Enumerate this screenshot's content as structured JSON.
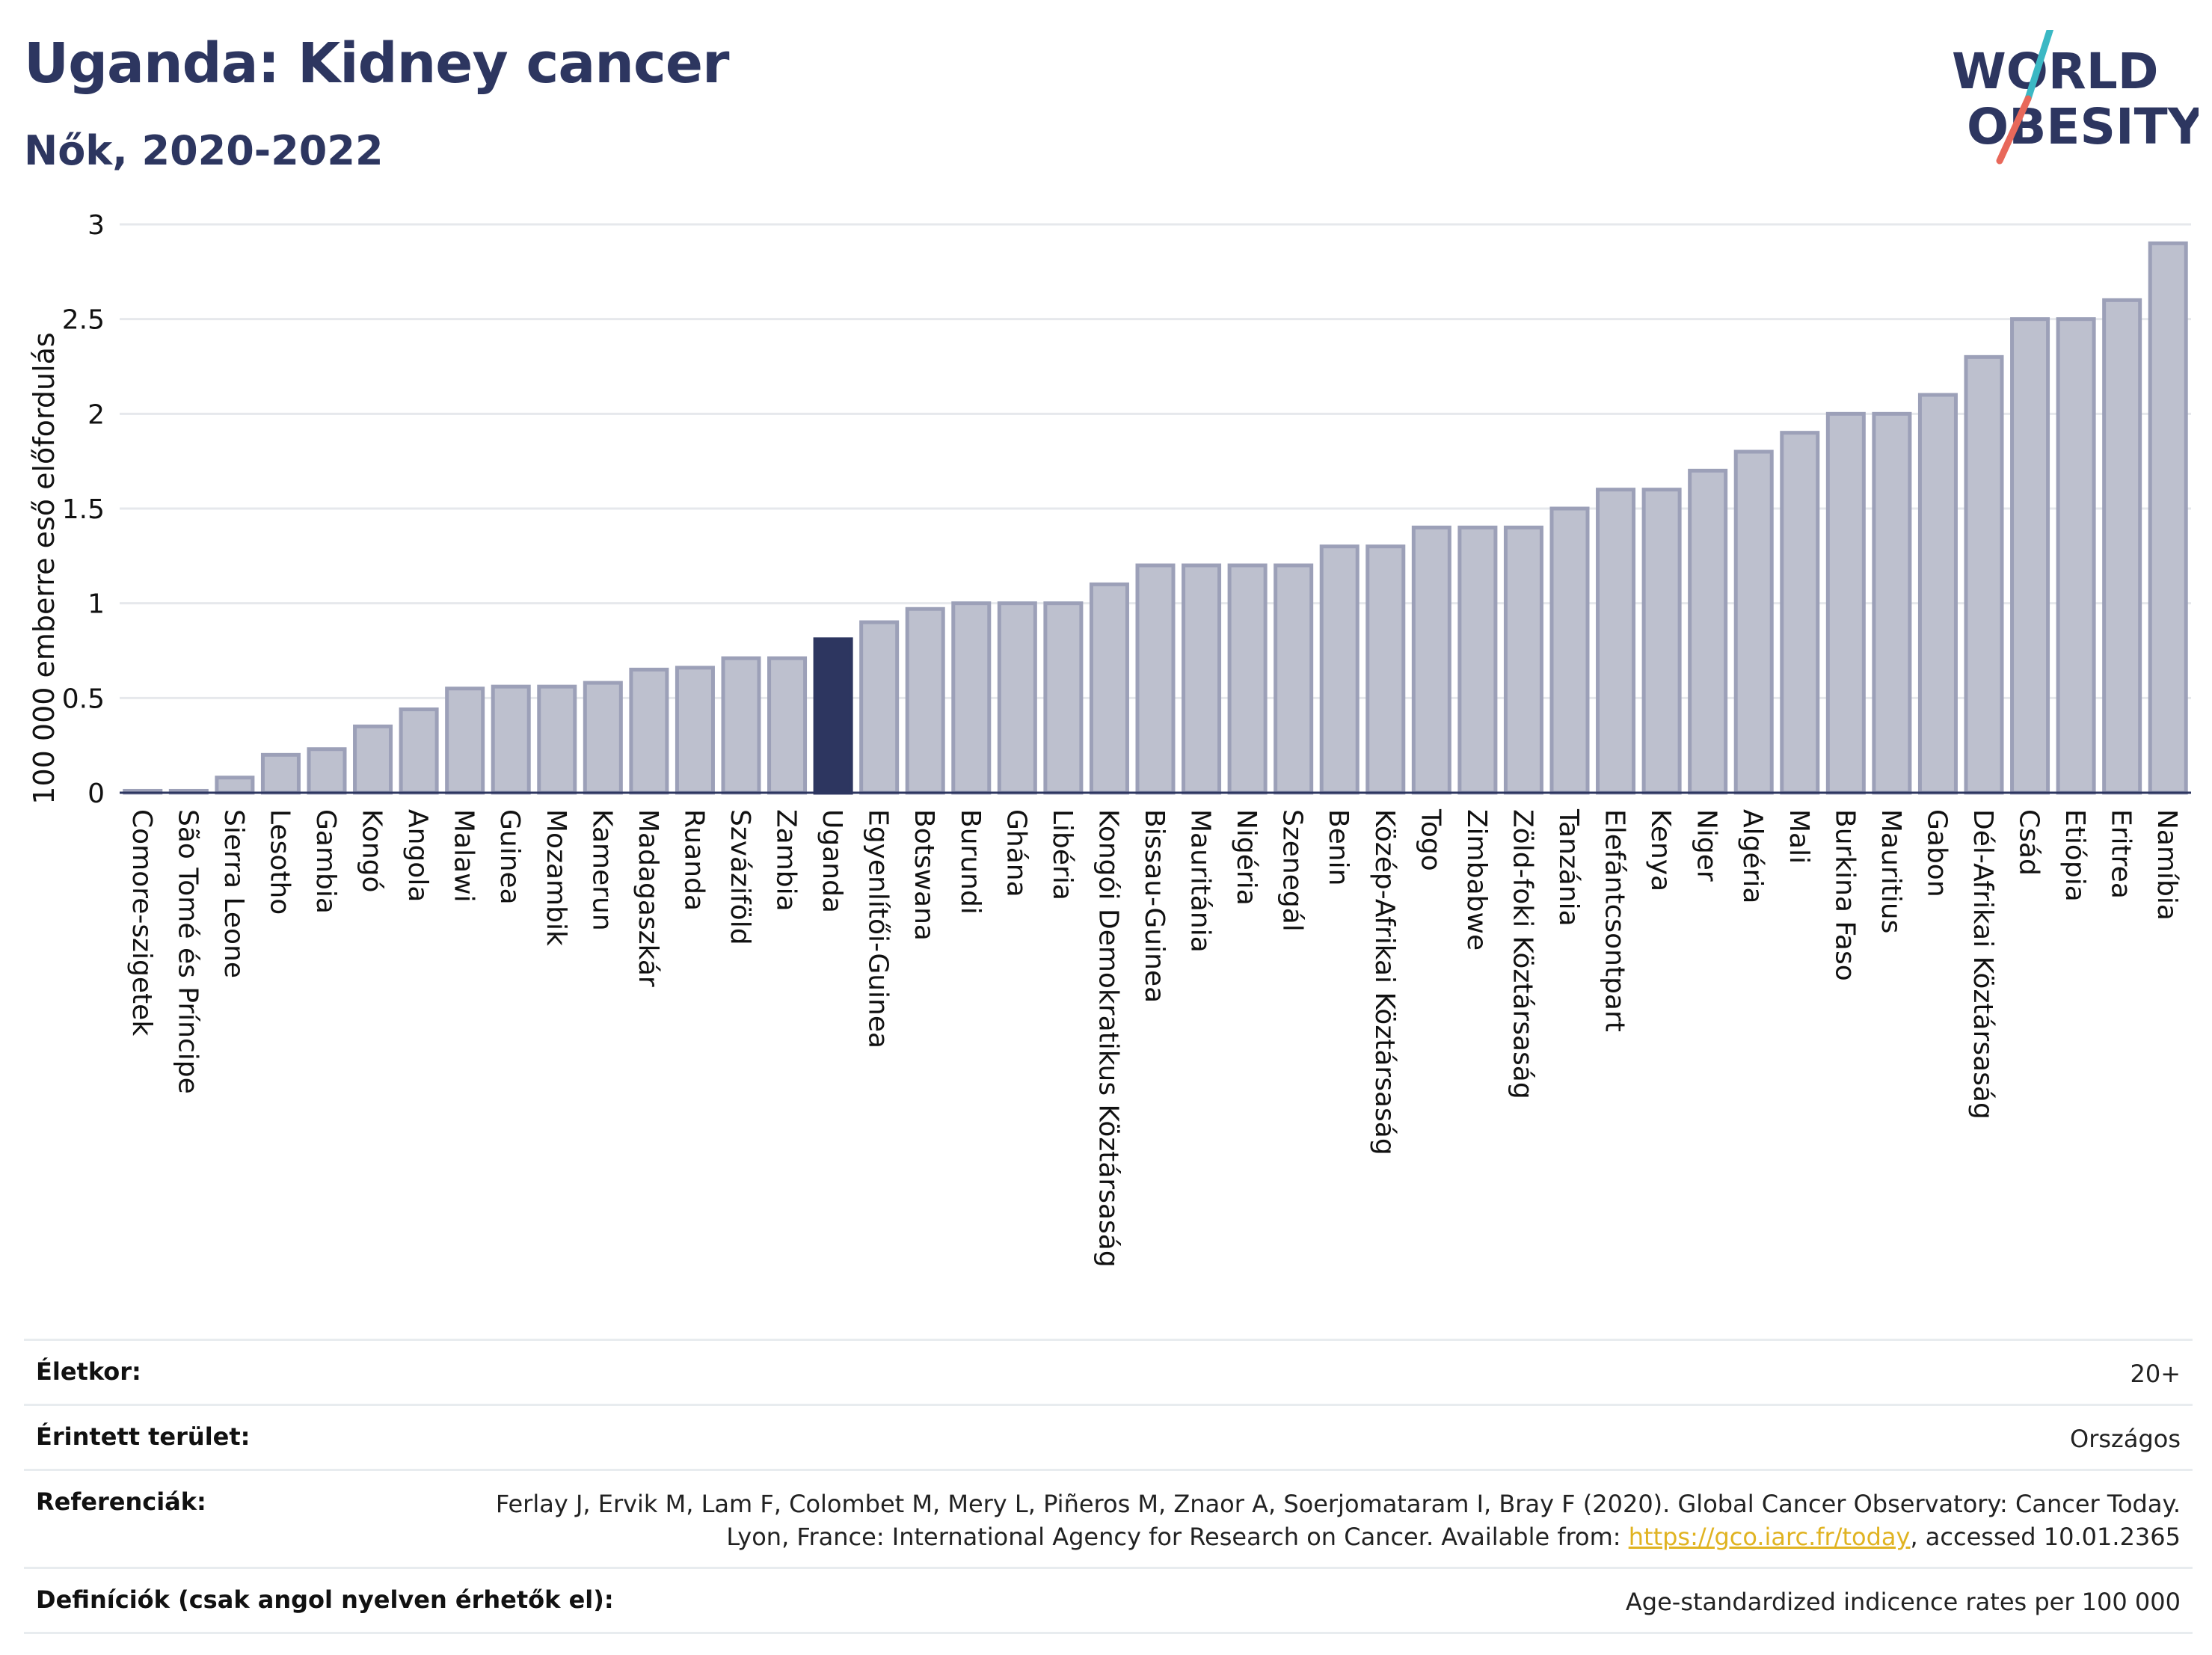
{
  "header": {
    "title": "Uganda: Kidney cancer",
    "subtitle": "Nők, 2020-2022"
  },
  "logo": {
    "line1": "WORLD",
    "line2": "OBESITY",
    "colors": {
      "text": "#2d3660",
      "slash_teal": "#3bb8c4",
      "slash_red": "#e8685a"
    }
  },
  "colors": {
    "bar_default": "#bdc0ce",
    "bar_border": "#9ca0b8",
    "bar_highlight": "#2d3660",
    "axis": "#2d3660",
    "grid": "#e6e8ec"
  },
  "chart_data": {
    "type": "bar",
    "ylabel": "100 000 emberre eső előfordulás",
    "ylim": [
      0,
      3
    ],
    "yticks": [
      "0",
      "0.5",
      "1",
      "1.5",
      "2",
      "2.5",
      "3"
    ],
    "grid": true,
    "highlight": "Uganda",
    "categories": [
      "Comore-szigetek",
      "São Tomé és Príncipe",
      "Sierra Leone",
      "Lesotho",
      "Gambia",
      "Kongó",
      "Angola",
      "Malawi",
      "Guinea",
      "Mozambik",
      "Kamerun",
      "Madagaszkár",
      "Ruanda",
      "Szváziföld",
      "Zambia",
      "Uganda",
      "Egyenlítői-Guinea",
      "Botswana",
      "Burundi",
      "Ghána",
      "Libéria",
      "Kongói Demokratikus Köztársaság",
      "Bissau-Guinea",
      "Mauritánia",
      "Nigéria",
      "Szenegál",
      "Benin",
      "Közép-Afrikai Köztársaság",
      "Togo",
      "Zimbabwe",
      "Zöld-foki Köztársaság",
      "Tanzánia",
      "Elefántcsontpart",
      "Kenya",
      "Niger",
      "Algéria",
      "Mali",
      "Burkina Faso",
      "Mauritius",
      "Gabon",
      "Dél-Afrikai Köztársaság",
      "Csád",
      "Etiópia",
      "Eritrea",
      "Namíbia"
    ],
    "values": [
      0.01,
      0.01,
      0.08,
      0.2,
      0.23,
      0.35,
      0.44,
      0.55,
      0.56,
      0.56,
      0.58,
      0.65,
      0.66,
      0.71,
      0.71,
      0.81,
      0.9,
      0.97,
      1.0,
      1.0,
      1.0,
      1.1,
      1.2,
      1.2,
      1.2,
      1.2,
      1.3,
      1.3,
      1.4,
      1.4,
      1.4,
      1.5,
      1.6,
      1.6,
      1.7,
      1.8,
      1.9,
      2.0,
      2.0,
      2.1,
      2.3,
      2.5,
      2.5,
      2.6,
      2.9
    ]
  },
  "info": {
    "age_label": "Életkor:",
    "age_value": "20+",
    "area_label": "Érintett terület:",
    "area_value": "Országos",
    "ref_label": "Referenciák:",
    "ref_text_1": "Ferlay J, Ervik M, Lam F, Colombet M, Mery L, Piñeros M, Znaor A, Soerjomataram I, Bray F (2020). Global Cancer Observatory: Cancer Today. Lyon, France: International Agency for Research on Cancer. Available from: ",
    "ref_link": "https://gco.iarc.fr/today",
    "ref_text_2": ", accessed 10.01.2365",
    "def_label": "Definíciók (csak angol nyelven érhetők el):",
    "def_value": "Age-standardized indicence rates per 100 000"
  }
}
